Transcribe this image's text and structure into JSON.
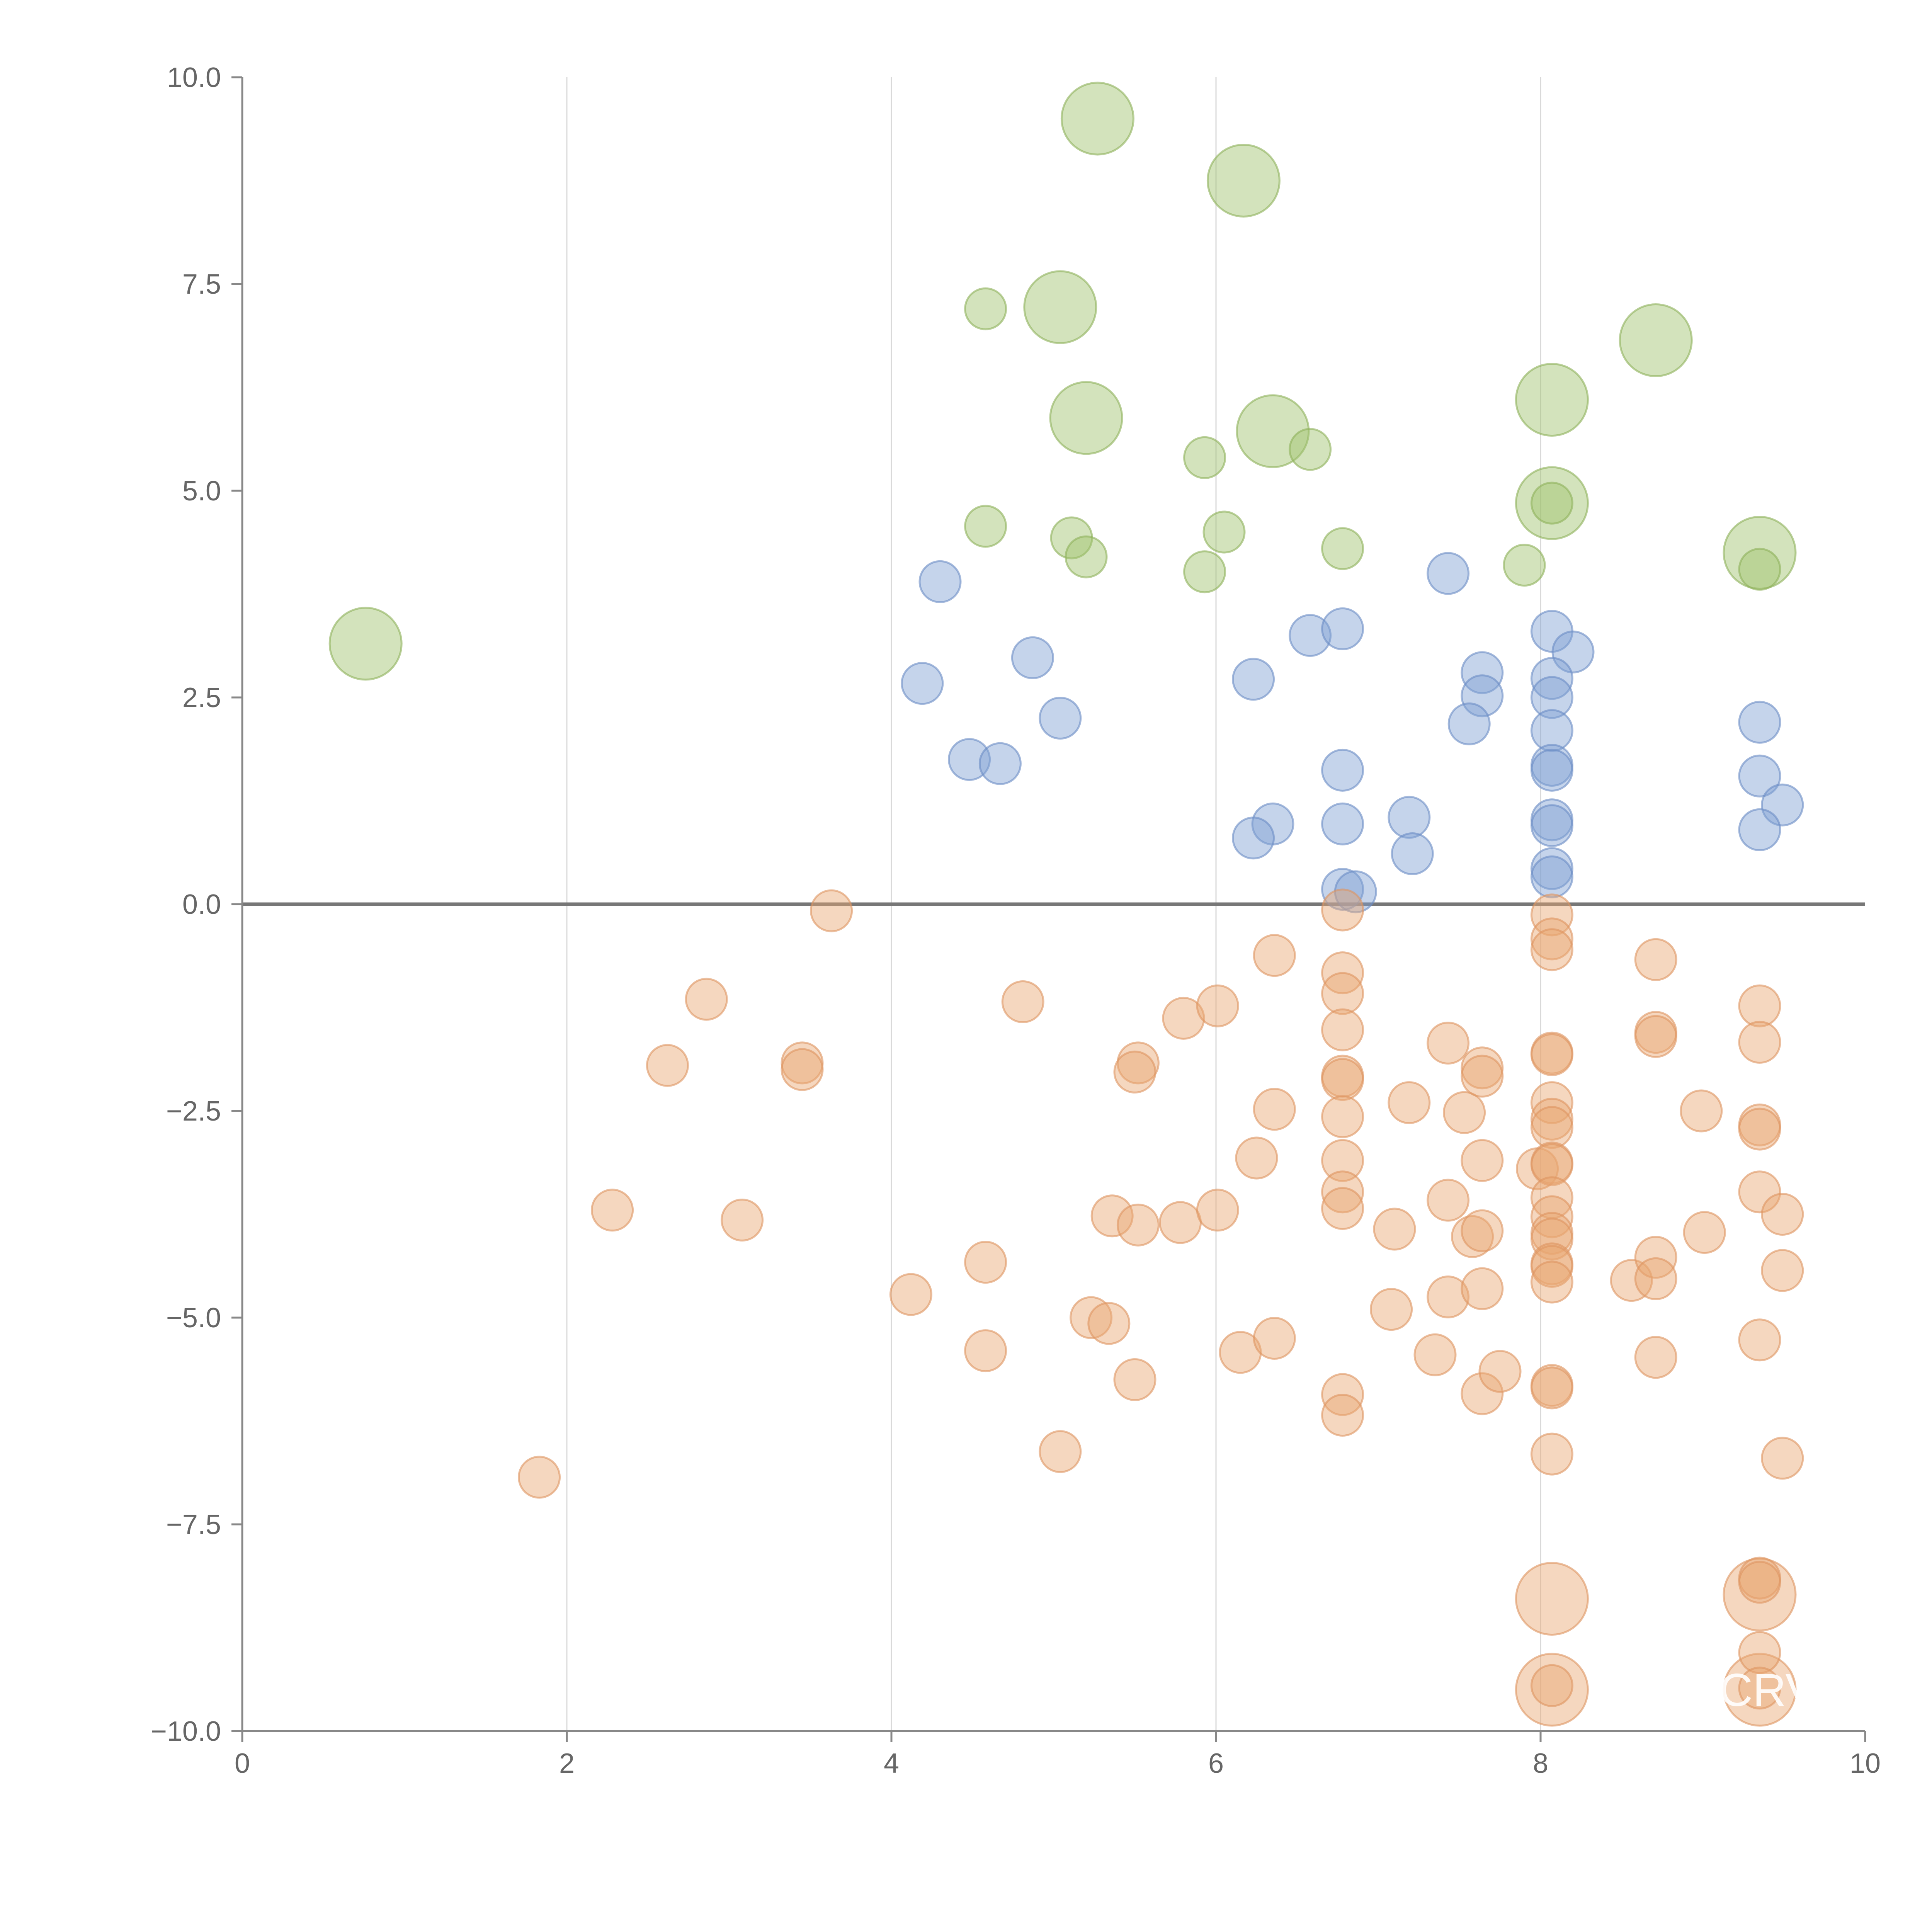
{
  "chart_data": {
    "type": "scatter",
    "title": "",
    "xlabel": "",
    "ylabel": "",
    "xlim": [
      0,
      10
    ],
    "ylim": [
      -10,
      10
    ],
    "x_ticks": [
      0,
      2,
      4,
      6,
      8,
      10
    ],
    "y_ticks": [
      -10,
      -7.5,
      -5,
      -2.5,
      0,
      2.5,
      5,
      7.5,
      10
    ],
    "x_tick_labels": [
      "0",
      "2",
      "4",
      "6",
      "8",
      "10"
    ],
    "y_tick_labels": [
      "−10.0",
      "−7.5",
      "−5.0",
      "−2.5",
      "0.0",
      "2.5",
      "5.0",
      "7.5",
      "10.0"
    ],
    "grid": "vertical",
    "reference_line_y": 0,
    "annotations": [
      "CRV"
    ],
    "series": [
      {
        "name": "green",
        "color": "#9dc06a",
        "stroke": "#8db05a",
        "points": [
          [
            0.76,
            3.15,
            3
          ],
          [
            5.27,
            9.5,
            3
          ],
          [
            6.17,
            8.75,
            3
          ],
          [
            5.04,
            7.22,
            3
          ],
          [
            8.71,
            6.82,
            3
          ],
          [
            5.2,
            5.88,
            3
          ],
          [
            6.35,
            5.72,
            3
          ],
          [
            8.07,
            6.1,
            3
          ],
          [
            8.07,
            4.85,
            3
          ],
          [
            9.35,
            4.25,
            3
          ],
          [
            4.58,
            7.2,
            1
          ],
          [
            5.93,
            5.4,
            1
          ],
          [
            6.58,
            5.5,
            1
          ],
          [
            4.58,
            4.57,
            1
          ],
          [
            5.11,
            4.43,
            1
          ],
          [
            5.2,
            4.2,
            1
          ],
          [
            6.05,
            4.5,
            1
          ],
          [
            5.93,
            4.02,
            1
          ],
          [
            6.78,
            4.3,
            1
          ],
          [
            7.9,
            4.1,
            1
          ],
          [
            8.07,
            4.85,
            1
          ],
          [
            9.35,
            4.05,
            1
          ]
        ]
      },
      {
        "name": "blue",
        "color": "#7fa0d2",
        "stroke": "#6b8cc4",
        "points": [
          [
            4.3,
            3.9,
            1
          ],
          [
            4.19,
            2.67,
            1
          ],
          [
            4.87,
            2.98,
            1
          ],
          [
            5.04,
            2.25,
            1
          ],
          [
            4.48,
            1.75,
            1
          ],
          [
            4.67,
            1.7,
            1
          ],
          [
            6.23,
            2.72,
            1
          ],
          [
            6.58,
            3.25,
            1
          ],
          [
            6.78,
            3.33,
            1
          ],
          [
            6.78,
            1.62,
            1
          ],
          [
            6.78,
            0.97,
            1
          ],
          [
            6.35,
            0.97,
            1
          ],
          [
            6.23,
            0.8,
            1
          ],
          [
            6.78,
            0.18,
            1
          ],
          [
            6.86,
            0.15,
            1
          ],
          [
            7.19,
            1.05,
            1
          ],
          [
            7.21,
            0.61,
            1
          ],
          [
            7.43,
            4.0,
            1
          ],
          [
            7.64,
            2.8,
            1
          ],
          [
            7.64,
            2.52,
            1
          ],
          [
            7.56,
            2.18,
            1
          ],
          [
            8.07,
            3.3,
            1
          ],
          [
            8.2,
            3.05,
            1
          ],
          [
            8.07,
            2.73,
            1
          ],
          [
            8.07,
            2.5,
            1
          ],
          [
            8.07,
            2.1,
            1
          ],
          [
            8.07,
            1.68,
            1
          ],
          [
            8.07,
            1.62,
            1
          ],
          [
            8.07,
            1.02,
            1
          ],
          [
            8.07,
            0.95,
            1
          ],
          [
            8.07,
            0.43,
            1
          ],
          [
            8.07,
            0.33,
            1
          ],
          [
            9.35,
            2.2,
            1
          ],
          [
            9.35,
            1.55,
            1
          ],
          [
            9.49,
            1.2,
            1
          ],
          [
            9.35,
            0.9,
            1
          ]
        ]
      },
      {
        "name": "orange",
        "color": "#e8a772",
        "stroke": "#dd9460",
        "points": [
          [
            3.63,
            -0.08,
            1
          ],
          [
            2.86,
            -1.15,
            1
          ],
          [
            2.62,
            -1.95,
            1
          ],
          [
            3.45,
            -1.92,
            1
          ],
          [
            3.45,
            -2.0,
            1
          ],
          [
            2.28,
            -3.7,
            1
          ],
          [
            3.08,
            -3.82,
            1
          ],
          [
            1.83,
            -6.93,
            1
          ],
          [
            4.81,
            -1.18,
            1
          ],
          [
            4.12,
            -4.72,
            1
          ],
          [
            4.58,
            -4.33,
            1
          ],
          [
            4.58,
            -5.4,
            1
          ],
          [
            5.04,
            -6.62,
            1
          ],
          [
            5.23,
            -5.0,
            1
          ],
          [
            5.34,
            -5.07,
            1
          ],
          [
            5.36,
            -3.77,
            1
          ],
          [
            5.52,
            -1.92,
            1
          ],
          [
            5.5,
            -2.03,
            1
          ],
          [
            5.52,
            -3.88,
            1
          ],
          [
            5.5,
            -5.75,
            1
          ],
          [
            5.8,
            -1.38,
            1
          ],
          [
            5.78,
            -3.85,
            1
          ],
          [
            6.01,
            -1.23,
            1
          ],
          [
            6.01,
            -3.7,
            1
          ],
          [
            6.15,
            -5.42,
            1
          ],
          [
            6.25,
            -3.07,
            1
          ],
          [
            6.36,
            -0.62,
            1
          ],
          [
            6.36,
            -2.48,
            1
          ],
          [
            6.36,
            -5.25,
            1
          ],
          [
            6.78,
            -0.07,
            1
          ],
          [
            6.78,
            -0.83,
            1
          ],
          [
            6.78,
            -1.08,
            1
          ],
          [
            6.78,
            -1.52,
            1
          ],
          [
            6.78,
            -2.08,
            1
          ],
          [
            6.78,
            -2.12,
            1
          ],
          [
            6.78,
            -2.57,
            1
          ],
          [
            6.78,
            -3.1,
            1
          ],
          [
            6.78,
            -3.48,
            1
          ],
          [
            6.78,
            -3.68,
            1
          ],
          [
            6.78,
            -5.93,
            1
          ],
          [
            6.78,
            -6.18,
            1
          ],
          [
            7.1,
            -3.93,
            1
          ],
          [
            7.08,
            -4.9,
            1
          ],
          [
            7.19,
            -2.4,
            1
          ],
          [
            7.35,
            -5.45,
            1
          ],
          [
            7.43,
            -1.68,
            1
          ],
          [
            7.43,
            -3.58,
            1
          ],
          [
            7.43,
            -4.75,
            1
          ],
          [
            7.53,
            -2.52,
            1
          ],
          [
            7.58,
            -4.02,
            1
          ],
          [
            7.64,
            -1.98,
            1
          ],
          [
            7.64,
            -2.08,
            1
          ],
          [
            7.64,
            -3.1,
            1
          ],
          [
            7.64,
            -3.95,
            1
          ],
          [
            7.64,
            -4.65,
            1
          ],
          [
            7.64,
            -5.92,
            1
          ],
          [
            7.75,
            -5.65,
            1
          ],
          [
            7.98,
            -3.2,
            1
          ],
          [
            8.07,
            -0.13,
            1
          ],
          [
            8.07,
            -0.42,
            1
          ],
          [
            8.07,
            -0.55,
            1
          ],
          [
            8.07,
            -1.8,
            1
          ],
          [
            8.07,
            -1.82,
            1
          ],
          [
            8.07,
            -2.4,
            1
          ],
          [
            8.07,
            -2.6,
            1
          ],
          [
            8.07,
            -2.7,
            1
          ],
          [
            8.07,
            -3.13,
            1
          ],
          [
            8.07,
            -3.15,
            1
          ],
          [
            8.07,
            -3.55,
            1
          ],
          [
            8.07,
            -3.78,
            1
          ],
          [
            8.07,
            -3.98,
            1
          ],
          [
            8.07,
            -4.05,
            1
          ],
          [
            8.07,
            -4.35,
            1
          ],
          [
            8.07,
            -4.38,
            1
          ],
          [
            8.07,
            -4.57,
            1
          ],
          [
            8.07,
            -5.82,
            1
          ],
          [
            8.07,
            -5.85,
            1
          ],
          [
            8.07,
            -6.65,
            1
          ],
          [
            8.71,
            -0.67,
            1
          ],
          [
            8.71,
            -1.55,
            1
          ],
          [
            8.71,
            -1.6,
            1
          ],
          [
            8.56,
            -4.55,
            1
          ],
          [
            8.71,
            -4.27,
            1
          ],
          [
            8.71,
            -4.53,
            1
          ],
          [
            8.71,
            -5.48,
            1
          ],
          [
            8.99,
            -2.5,
            1
          ],
          [
            9.01,
            -3.97,
            1
          ],
          [
            9.35,
            -1.23,
            1
          ],
          [
            9.35,
            -1.67,
            1
          ],
          [
            9.35,
            -2.67,
            1
          ],
          [
            9.35,
            -2.72,
            1
          ],
          [
            9.35,
            -3.48,
            1
          ],
          [
            9.49,
            -3.75,
            1
          ],
          [
            9.49,
            -4.43,
            1
          ],
          [
            9.35,
            -5.27,
            1
          ],
          [
            9.49,
            -6.7,
            1
          ],
          [
            9.35,
            -8.15,
            1
          ],
          [
            9.35,
            -8.2,
            1
          ],
          [
            9.35,
            -9.05,
            1
          ],
          [
            9.35,
            -9.48,
            1
          ],
          [
            8.07,
            -9.45,
            1
          ],
          [
            8.07,
            -8.4,
            3
          ],
          [
            9.35,
            -8.35,
            3
          ],
          [
            8.07,
            -9.5,
            3
          ],
          [
            9.35,
            -9.5,
            3
          ]
        ]
      }
    ]
  }
}
